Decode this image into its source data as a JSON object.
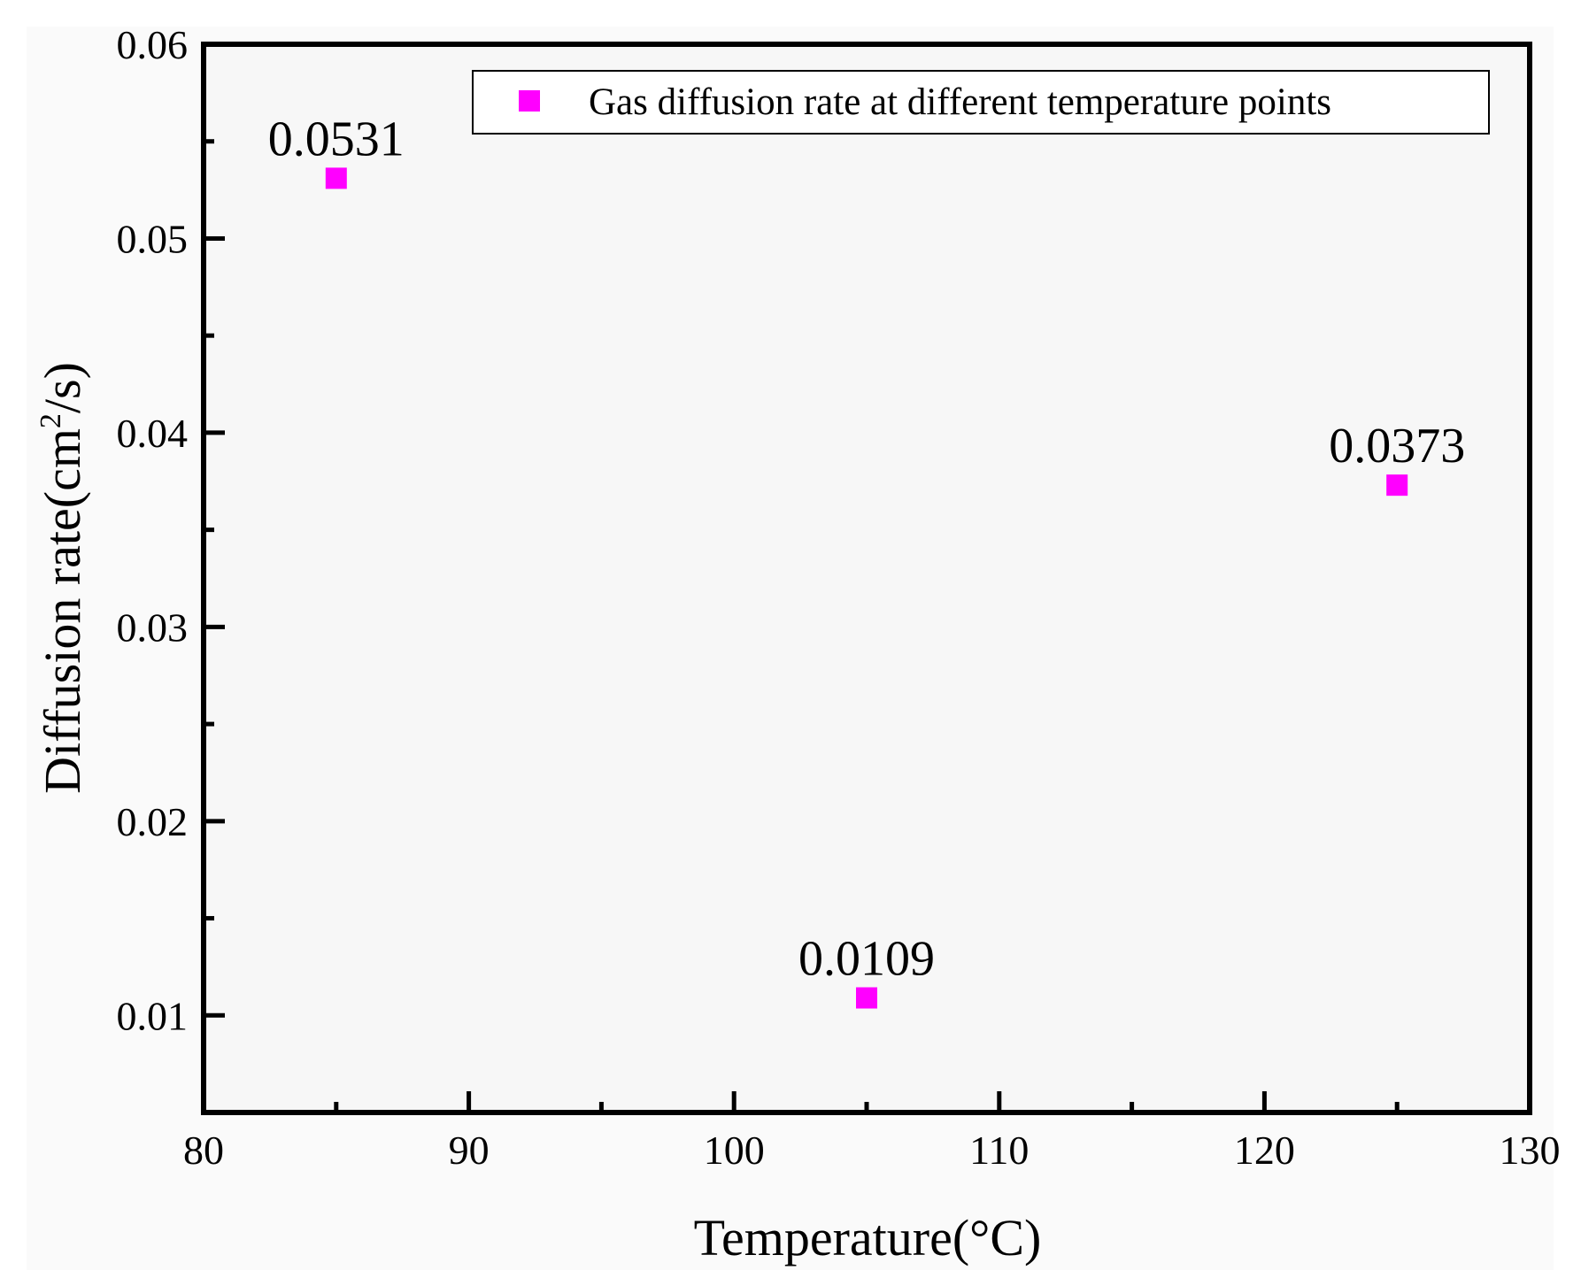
{
  "chart_data": {
    "type": "scatter",
    "title": "",
    "xlabel": "Temperature(°C)",
    "ylabel_parts": [
      "Diffusion rate(cm",
      "2",
      "/s)"
    ],
    "xlim": [
      80,
      130
    ],
    "ylim": [
      0.005,
      0.06
    ],
    "x_major_ticks": [
      80,
      90,
      100,
      110,
      120,
      130
    ],
    "x_minor_ticks": [
      85,
      95,
      105,
      115,
      125
    ],
    "y_major_ticks": [
      0.01,
      0.02,
      0.03,
      0.04,
      0.05,
      0.06
    ],
    "y_minor_ticks": [
      0.015,
      0.025,
      0.035,
      0.045,
      0.055
    ],
    "series": [
      {
        "name": "Gas diffusion rate at different temperature points",
        "color": "#ff00ff",
        "x": [
          85,
          105,
          125
        ],
        "y": [
          0.0531,
          0.0109,
          0.0373
        ],
        "labels": [
          "0.0531",
          "0.0109",
          "0.0373"
        ]
      }
    ],
    "legend_position": "top-right",
    "grid": false
  }
}
